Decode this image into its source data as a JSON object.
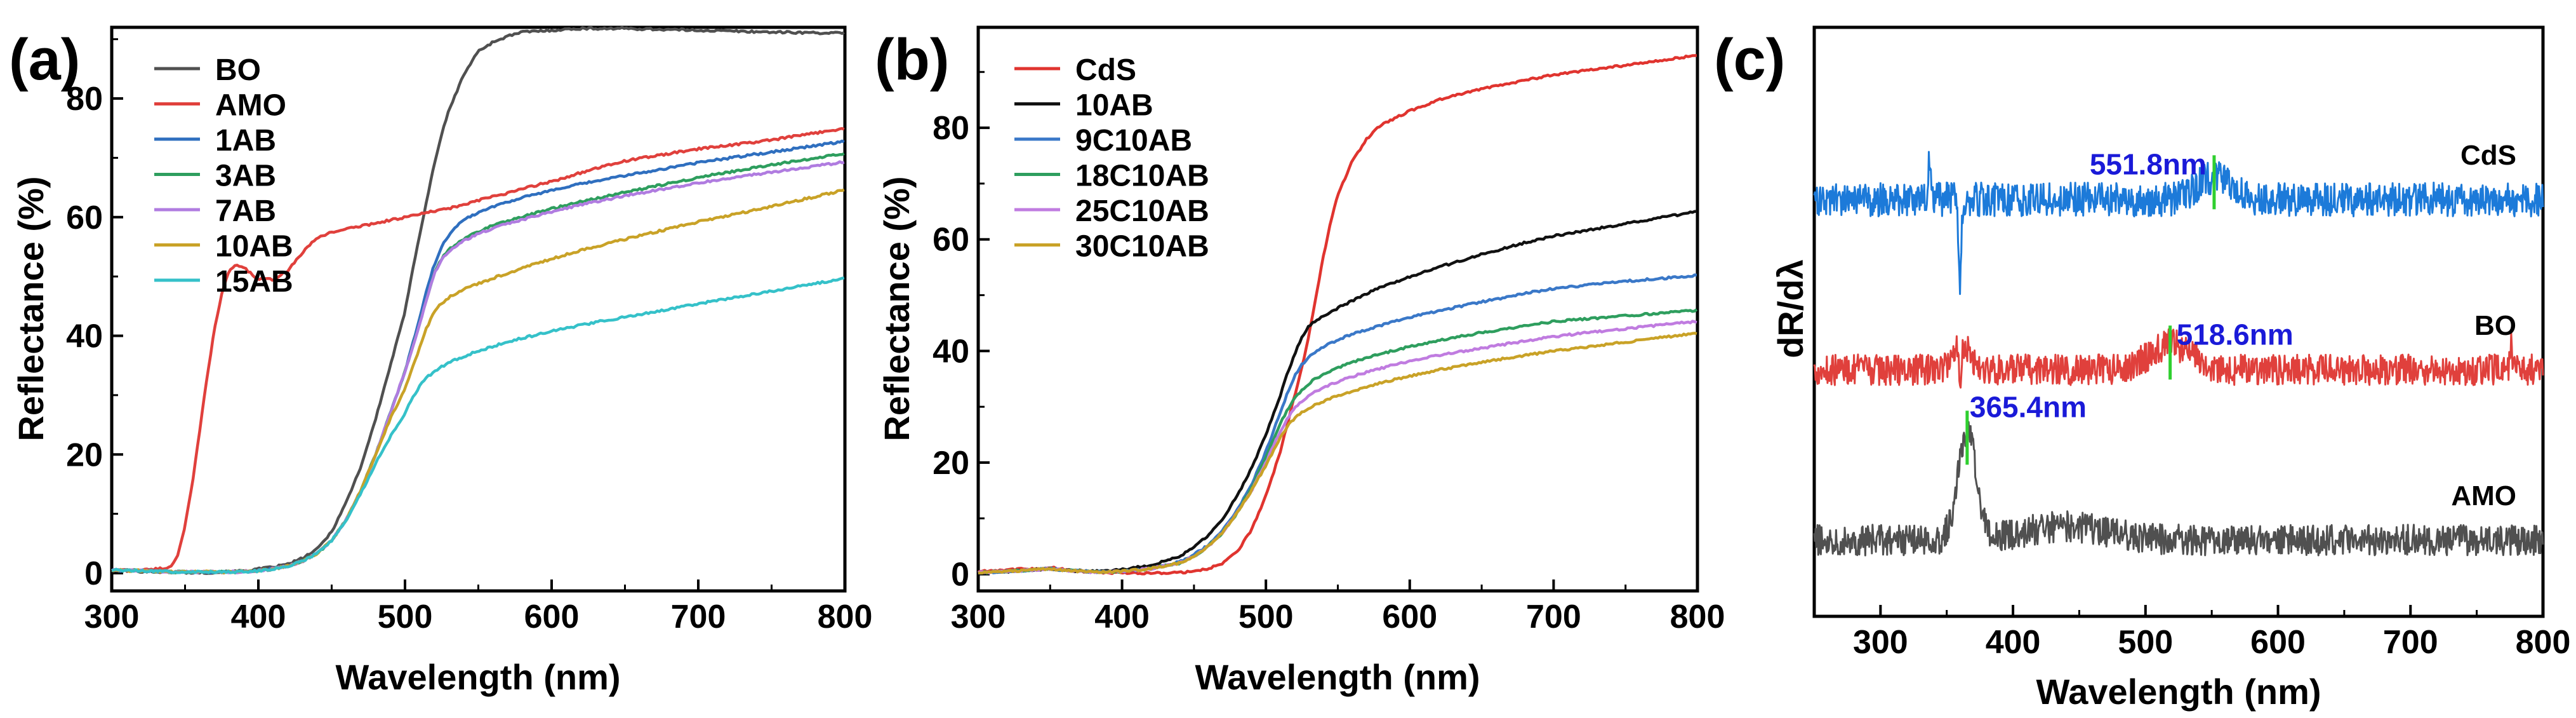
{
  "chart_data": [
    {
      "panel_label": "(a)",
      "type": "line",
      "xlabel": "Wavelength (nm)",
      "ylabel": "Reflectance (%)",
      "xlim": [
        300,
        800
      ],
      "ylim": [
        -3,
        92
      ],
      "xticks": [
        300,
        400,
        500,
        600,
        700,
        800
      ],
      "yticks": [
        0,
        20,
        40,
        60,
        80
      ],
      "x": [
        300,
        320,
        335,
        340,
        345,
        350,
        355,
        360,
        365,
        370,
        375,
        380,
        385,
        390,
        395,
        400,
        410,
        420,
        430,
        440,
        450,
        460,
        470,
        480,
        490,
        500,
        505,
        510,
        515,
        520,
        525,
        530,
        535,
        540,
        545,
        550,
        560,
        570,
        580,
        600,
        620,
        650,
        700,
        750,
        800
      ],
      "series": [
        {
          "name": "BO",
          "color": "#505050",
          "values": [
            0.5,
            0.3,
            0.2,
            0.2,
            0.1,
            0.1,
            0.1,
            0.1,
            0.1,
            0.1,
            0.2,
            0.2,
            0.3,
            0.4,
            0.5,
            0.7,
            1,
            1.5,
            2.5,
            4,
            7,
            12,
            18,
            26,
            35,
            44,
            51,
            57,
            63,
            69,
            74,
            78,
            81,
            84,
            86,
            88,
            89.5,
            90.5,
            91.2,
            91.5,
            91.8,
            91.8,
            91.5,
            91.2,
            91
          ]
        },
        {
          "name": "AMO",
          "color": "#e0403c",
          "values": [
            0.5,
            0.5,
            0.8,
            1,
            3,
            8,
            15,
            24,
            33,
            41,
            47,
            51,
            52,
            51.5,
            50.5,
            49.5,
            49.5,
            51,
            54,
            56.5,
            57.5,
            58,
            58.5,
            59,
            59.5,
            60,
            60.2,
            60.5,
            60.8,
            61,
            61.2,
            61.5,
            61.8,
            62,
            62.5,
            62.8,
            63.5,
            64,
            64.8,
            66,
            67.5,
            69.5,
            71.5,
            73,
            75
          ]
        },
        {
          "name": "1AB",
          "color": "#2f6fbf",
          "values": [
            0.5,
            0.4,
            0.3,
            0.2,
            0.2,
            0.2,
            0.2,
            0.2,
            0.2,
            0.2,
            0.2,
            0.2,
            0.2,
            0.3,
            0.3,
            0.4,
            0.7,
            1.2,
            2,
            3.3,
            5.5,
            9,
            14,
            20,
            27,
            34,
            38.5,
            43,
            48,
            52,
            55,
            57,
            58.5,
            59.5,
            60.2,
            60.8,
            61.8,
            62.6,
            63.3,
            64.5,
            65.6,
            67,
            69.2,
            71,
            72.8
          ]
        },
        {
          "name": "3AB",
          "color": "#2e9e5e",
          "values": [
            0.5,
            0.4,
            0.3,
            0.2,
            0.2,
            0.2,
            0.2,
            0.2,
            0.2,
            0.2,
            0.2,
            0.2,
            0.2,
            0.3,
            0.3,
            0.4,
            0.7,
            1.2,
            2,
            3.3,
            5.5,
            9,
            14,
            20,
            27,
            34,
            38,
            42,
            46.5,
            50.5,
            53,
            54.5,
            55.5,
            56.3,
            57,
            57.6,
            58.6,
            59.4,
            60.1,
            61.4,
            62.6,
            64.2,
            66.7,
            68.8,
            70.8
          ]
        },
        {
          "name": "7AB",
          "color": "#b07ce0",
          "values": [
            0.5,
            0.4,
            0.3,
            0.2,
            0.2,
            0.2,
            0.2,
            0.2,
            0.2,
            0.2,
            0.2,
            0.2,
            0.2,
            0.3,
            0.3,
            0.4,
            0.7,
            1.2,
            2,
            3.3,
            5.5,
            9,
            14,
            20,
            27,
            34,
            38,
            42,
            46.5,
            50.5,
            52.8,
            54.2,
            55.2,
            56,
            56.6,
            57.2,
            58.1,
            58.9,
            59.6,
            60.9,
            62.1,
            63.6,
            65.8,
            67.6,
            69.3
          ]
        },
        {
          "name": "10AB",
          "color": "#c9a227",
          "values": [
            0.5,
            0.4,
            0.3,
            0.2,
            0.2,
            0.2,
            0.2,
            0.2,
            0.2,
            0.2,
            0.2,
            0.2,
            0.2,
            0.3,
            0.3,
            0.4,
            0.7,
            1.2,
            2,
            3.3,
            5.5,
            9,
            14,
            20,
            26,
            31,
            34.5,
            38,
            41.5,
            44,
            45.5,
            46.5,
            47.2,
            47.8,
            48.3,
            48.8,
            49.7,
            50.6,
            51.4,
            53,
            54.4,
            56.3,
            59.2,
            61.8,
            64.6
          ]
        },
        {
          "name": "15AB",
          "color": "#35c1c9",
          "values": [
            0.5,
            0.4,
            0.3,
            0.2,
            0.2,
            0.2,
            0.2,
            0.2,
            0.2,
            0.2,
            0.2,
            0.2,
            0.2,
            0.3,
            0.3,
            0.4,
            0.7,
            1.2,
            2,
            3.3,
            5.5,
            9,
            13.5,
            18.5,
            23,
            27,
            29.5,
            31.5,
            33,
            34,
            34.8,
            35.5,
            36,
            36.5,
            37,
            37.4,
            38.2,
            39,
            39.6,
            40.8,
            41.8,
            43.2,
            45.4,
            47.5,
            49.7
          ]
        }
      ]
    },
    {
      "panel_label": "(b)",
      "type": "line",
      "xlabel": "Wavelength (nm)",
      "ylabel": "Reflectance (%)",
      "xlim": [
        300,
        800
      ],
      "ylim": [
        -3,
        98
      ],
      "xticks": [
        300,
        400,
        500,
        600,
        700,
        800
      ],
      "yticks": [
        0,
        20,
        40,
        60,
        80
      ],
      "x": [
        300,
        320,
        340,
        350,
        360,
        380,
        400,
        420,
        440,
        450,
        460,
        470,
        480,
        490,
        500,
        505,
        510,
        515,
        520,
        525,
        530,
        535,
        540,
        545,
        550,
        560,
        570,
        580,
        600,
        620,
        650,
        680,
        700,
        750,
        800
      ],
      "series": [
        {
          "name": "CdS",
          "color": "#e0342f",
          "values": [
            0.5,
            0.8,
            1.0,
            1.2,
            0.8,
            0.3,
            0.2,
            0.2,
            0.3,
            0.5,
            1.0,
            2.0,
            4.0,
            8.0,
            14,
            18,
            22,
            27,
            32,
            37,
            43,
            50,
            57,
            63,
            68,
            74,
            78,
            80.5,
            83,
            85,
            87,
            88.5,
            89.5,
            91.2,
            93
          ]
        },
        {
          "name": "10AB",
          "color": "#111111",
          "values": [
            0.3,
            0.5,
            0.8,
            1.0,
            0.7,
            0.5,
            0.8,
            1.6,
            3.2,
            4.8,
            7,
            10,
            14,
            19,
            25,
            28.5,
            32,
            36,
            39.5,
            42.5,
            44.5,
            45.5,
            46.3,
            47,
            47.7,
            49,
            50.3,
            51.4,
            53.3,
            55,
            57.3,
            59.4,
            60.6,
            62.8,
            65
          ]
        },
        {
          "name": "9C10AB",
          "color": "#3a78c8",
          "values": [
            0.3,
            0.5,
            0.8,
            1.0,
            0.7,
            0.4,
            0.5,
            1.0,
            2.2,
            3.5,
            5.2,
            8,
            11.5,
            16,
            22,
            25.5,
            29,
            32.5,
            35.5,
            37.5,
            39,
            40,
            40.8,
            41.4,
            42,
            43,
            43.8,
            44.6,
            46,
            47.2,
            48.8,
            50.3,
            51.2,
            52.5,
            53.5
          ]
        },
        {
          "name": "18C10AB",
          "color": "#2e9e5e",
          "values": [
            0.3,
            0.5,
            0.8,
            1.0,
            0.7,
            0.4,
            0.5,
            1.0,
            2.0,
            3.2,
            5.0,
            7.5,
            11,
            15.5,
            21,
            24,
            27,
            29.5,
            31.5,
            33,
            34.2,
            35.1,
            35.8,
            36.4,
            37,
            38,
            38.8,
            39.5,
            40.8,
            41.9,
            43.3,
            44.5,
            45.3,
            46.3,
            47.3
          ]
        },
        {
          "name": "25C10AB",
          "color": "#c07ce0",
          "values": [
            0.3,
            0.5,
            0.8,
            1.0,
            0.7,
            0.4,
            0.5,
            1.0,
            2.0,
            3.2,
            5.0,
            7.5,
            11,
            15,
            20,
            23,
            25.5,
            28,
            29.8,
            31,
            32,
            32.8,
            33.5,
            34,
            34.5,
            35.4,
            36.2,
            36.9,
            38.2,
            39.2,
            40.5,
            41.8,
            42.6,
            44,
            45.3
          ]
        },
        {
          "name": "30C10AB",
          "color": "#c9a227",
          "values": [
            0.3,
            0.5,
            0.8,
            1.0,
            0.7,
            0.4,
            0.5,
            1.0,
            2.0,
            3.2,
            5.0,
            7.5,
            11,
            15,
            19.5,
            22,
            24.5,
            26.5,
            28,
            29,
            29.8,
            30.5,
            31,
            31.5,
            32,
            32.8,
            33.6,
            34.3,
            35.5,
            36.6,
            38,
            39.2,
            40,
            41.6,
            43.2
          ]
        }
      ]
    },
    {
      "panel_label": "(c)",
      "type": "line",
      "xlabel": "Wavelength (nm)",
      "ylabel": "dR/dλ",
      "xlim": [
        250,
        800
      ],
      "xticks": [
        300,
        400,
        500,
        600,
        700,
        800
      ],
      "y_ticks_shown": false,
      "offset_series": true,
      "series": [
        {
          "name": "CdS",
          "color": "#1c7ad9",
          "baseline": 2.0,
          "noise": 0.1,
          "peak_nm": 551.8,
          "peak_label": "551.8nm",
          "features": [
            {
              "center": 551.8,
              "width": 18,
              "amp": 0.13
            },
            {
              "center": 337,
              "width": 1.5,
              "amp": 0.22
            },
            {
              "center": 360,
              "width": 1.5,
              "amp": -0.48
            }
          ]
        },
        {
          "name": "BO",
          "color": "#e0403c",
          "baseline": 1.0,
          "noise": 0.09,
          "peak_nm": 518.6,
          "peak_label": "518.6nm",
          "features": [
            {
              "center": 361,
              "width": 9,
              "amp": 0.16
            },
            {
              "center": 518.6,
              "width": 22,
              "amp": 0.15
            },
            {
              "center": 360,
              "width": 1.2,
              "amp": -0.25
            },
            {
              "center": 776,
              "width": 1.5,
              "amp": 0.13
            }
          ]
        },
        {
          "name": "AMO",
          "color": "#505050",
          "baseline": 0.0,
          "noise": 0.09,
          "peak_nm": 365.4,
          "peak_label": "365.4nm",
          "features": [
            {
              "center": 365.4,
              "width": 10,
              "amp": 0.62
            },
            {
              "center": 440,
              "width": 45,
              "amp": 0.08
            }
          ]
        }
      ]
    }
  ],
  "panels": [
    {
      "label": "(a)",
      "xlabel": "Wavelength (nm)",
      "ylabel": "Reflectance (%)"
    },
    {
      "label": "(b)",
      "xlabel": "Wavelength (nm)",
      "ylabel": "Reflectance (%)"
    },
    {
      "label": "(c)",
      "xlabel": "Wavelength (nm)",
      "ylabel": "dR/dλ"
    }
  ],
  "colors": {
    "peak_marker": "#2fcf2f",
    "peak_label": "#1a1ad8",
    "axis": "#000000"
  }
}
